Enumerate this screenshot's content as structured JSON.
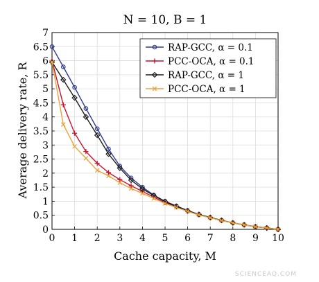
{
  "chart_data": {
    "type": "line",
    "title": "N = 10, B = 1",
    "xlabel": "Cache capacity, M",
    "ylabel": "Average delivery rate, R",
    "xlim": [
      0,
      10
    ],
    "ylim": [
      0,
      7
    ],
    "xticks": [
      "0",
      "1",
      "2",
      "3",
      "4",
      "5",
      "6",
      "7",
      "8",
      "9",
      "10"
    ],
    "yticks": [
      "0",
      "0.5",
      "1",
      "1.5",
      "2",
      "2.5",
      "3",
      "3.5",
      "4",
      "4.5",
      "5",
      "5.5",
      "6",
      "6.5",
      "7"
    ],
    "grid": true,
    "legend_position": "top-right",
    "series": [
      {
        "name": "RAP-GCC, α = 0.1",
        "color": "#2f3a8f",
        "marker": "circle",
        "x": [
          0,
          0.5,
          1,
          1.5,
          2,
          2.5,
          3,
          3.5,
          4,
          4.5,
          5,
          5.5,
          6,
          6.5,
          7,
          7.5,
          8,
          8.5,
          9,
          9.5,
          10
        ],
        "y": [
          6.5,
          5.78,
          5.05,
          4.3,
          3.58,
          2.86,
          2.25,
          1.83,
          1.5,
          1.22,
          1.0,
          0.83,
          0.67,
          0.53,
          0.42,
          0.32,
          0.23,
          0.16,
          0.09,
          0.05,
          0
        ]
      },
      {
        "name": "PCC-OCA, α = 0.1",
        "color": "#c8102e",
        "marker": "plus",
        "x": [
          0,
          0.5,
          1,
          1.5,
          2,
          2.5,
          3,
          3.5,
          4,
          4.5,
          5,
          5.5,
          6,
          6.5,
          7,
          7.5,
          8,
          8.5,
          9,
          9.5,
          10
        ],
        "y": [
          6.0,
          4.43,
          3.42,
          2.77,
          2.35,
          2.02,
          1.77,
          1.55,
          1.35,
          1.15,
          0.95,
          0.8,
          0.65,
          0.52,
          0.42,
          0.32,
          0.23,
          0.16,
          0.1,
          0.05,
          0
        ]
      },
      {
        "name": "RAP-GCC, α = 1",
        "color": "#1a1a1a",
        "marker": "diamond",
        "x": [
          0,
          0.5,
          1,
          1.5,
          2,
          2.5,
          3,
          3.5,
          4,
          4.5,
          5,
          5.5,
          6,
          6.5,
          7,
          7.5,
          8,
          8.5,
          9,
          9.5,
          10
        ],
        "y": [
          5.95,
          5.32,
          4.68,
          4.0,
          3.35,
          2.68,
          2.18,
          1.75,
          1.44,
          1.2,
          0.99,
          0.82,
          0.66,
          0.53,
          0.42,
          0.32,
          0.23,
          0.16,
          0.09,
          0.05,
          0
        ]
      },
      {
        "name": "PCC-OCA, α = 1",
        "color": "#e8a33d",
        "marker": "x",
        "x": [
          0,
          0.5,
          1,
          1.5,
          2,
          2.5,
          3,
          3.5,
          4,
          4.5,
          5,
          5.5,
          6,
          6.5,
          7,
          7.5,
          8,
          8.5,
          9,
          9.5,
          10
        ],
        "y": [
          5.95,
          3.73,
          2.95,
          2.53,
          2.1,
          1.9,
          1.66,
          1.45,
          1.28,
          1.1,
          0.92,
          0.78,
          0.64,
          0.51,
          0.41,
          0.31,
          0.23,
          0.16,
          0.09,
          0.05,
          0
        ]
      }
    ]
  },
  "watermark": "SCIENCEAQ.COM"
}
